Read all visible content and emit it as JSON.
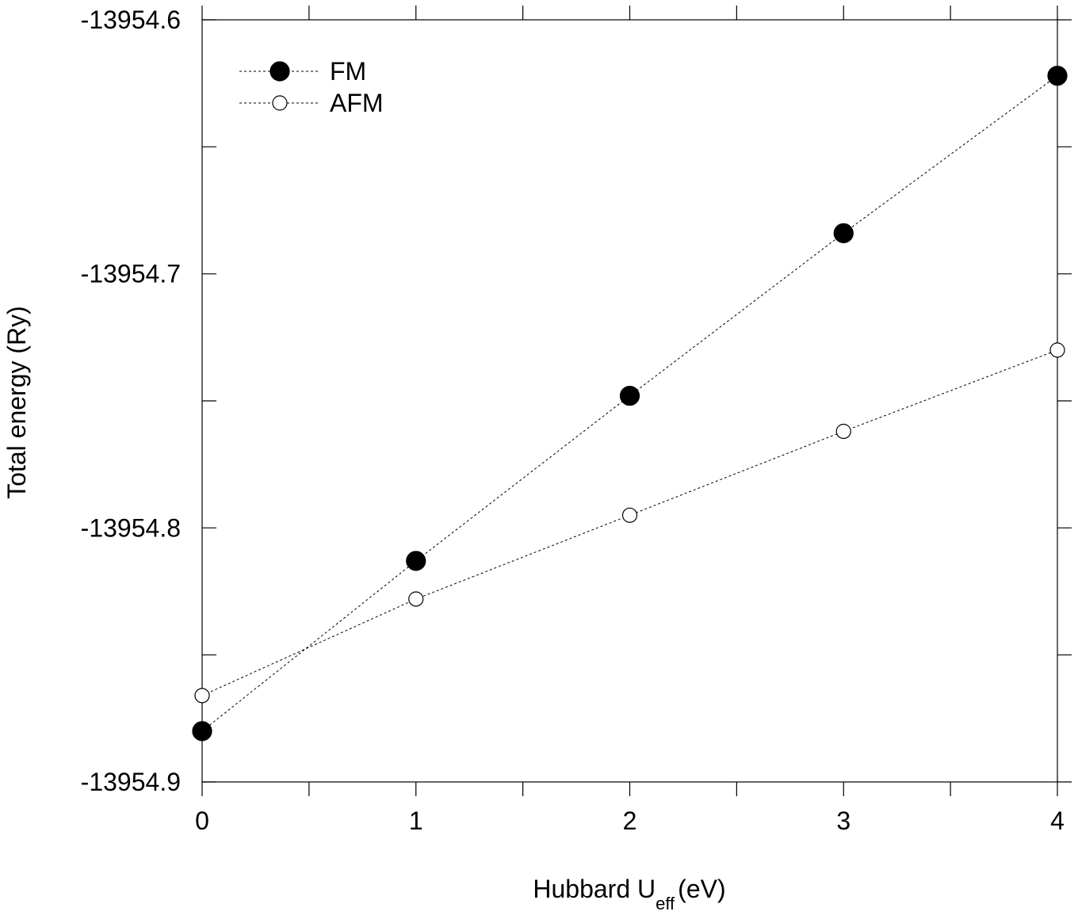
{
  "chart_data": {
    "type": "line",
    "xlabel_main": "Hubbard U",
    "xlabel_sub": "eff",
    "xlabel_unit": "(eV)",
    "ylabel": "Total energy (Ry)",
    "xlim": [
      0,
      4
    ],
    "ylim": [
      -13954.9,
      -13954.6
    ],
    "x_ticks": [
      0,
      1,
      2,
      3,
      4
    ],
    "x_tick_labels": [
      "0",
      "1",
      "2",
      "3",
      "4"
    ],
    "y_ticks": [
      -13954.9,
      -13954.8,
      -13954.7,
      -13954.6
    ],
    "y_tick_labels": [
      "-13954.9",
      "-13954.8",
      "-13954.7",
      "-13954.6"
    ],
    "grid": false,
    "legend_position": "top-left",
    "series": [
      {
        "name": "FM",
        "marker": "filled-circle",
        "x": [
          0,
          1,
          2,
          3,
          4
        ],
        "y": [
          -13954.88,
          -13954.813,
          -13954.748,
          -13954.684,
          -13954.622
        ]
      },
      {
        "name": "AFM",
        "marker": "open-circle",
        "x": [
          0,
          1,
          2,
          3,
          4
        ],
        "y": [
          -13954.866,
          -13954.828,
          -13954.795,
          -13954.762,
          -13954.73
        ]
      }
    ]
  }
}
